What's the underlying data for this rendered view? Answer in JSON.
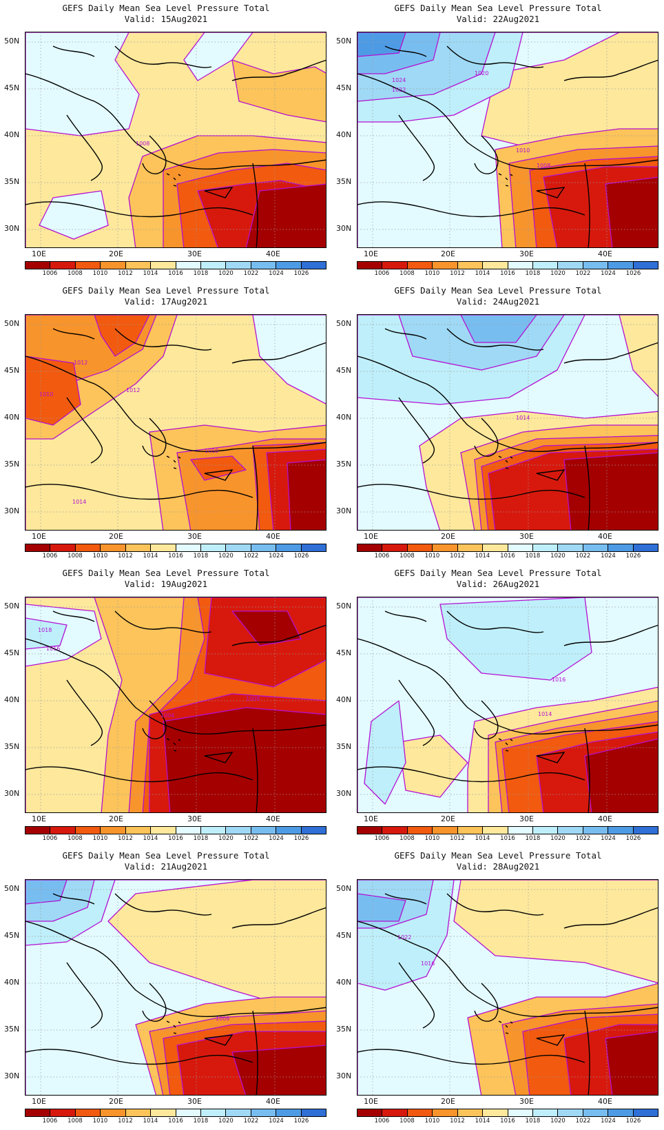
{
  "title": "GEFS Daily Mean Sea Level Pressure Total",
  "lat_labels": [
    "50N",
    "45N",
    "40N",
    "35N",
    "30N"
  ],
  "lon_labels": [
    "10E",
    "20E",
    "30E",
    "40E"
  ],
  "colorbar": {
    "labels": [
      "1006",
      "1008",
      "1010",
      "1012",
      "1014",
      "1016",
      "1018",
      "1020",
      "1022",
      "1024",
      "1026"
    ],
    "colors": [
      "#a50000",
      "#d7190d",
      "#f25a0f",
      "#f8942c",
      "#fcc45a",
      "#fde89c",
      "#e3fbff",
      "#bfeffa",
      "#9fd9f5",
      "#78bdf0",
      "#4e9be5",
      "#2f6fd6"
    ]
  },
  "contour_color": "#b40fd2",
  "panels": [
    {
      "valid": "Valid: 15Aug2021",
      "contour_labels": [
        "1008"
      ]
    },
    {
      "valid": "Valid: 22Aug2021",
      "contour_labels": [
        "1020",
        "1024",
        "1022",
        "1010",
        "1008"
      ]
    },
    {
      "valid": "Valid: 17Aug2021",
      "contour_labels": [
        "1012",
        "1010",
        "1012",
        "1010",
        "1014"
      ]
    },
    {
      "valid": "Valid: 24Aug2021",
      "contour_labels": [
        "1014"
      ]
    },
    {
      "valid": "Valid: 19Aug2021",
      "contour_labels": [
        "1018",
        "1016",
        "1008",
        "1004"
      ]
    },
    {
      "valid": "Valid: 26Aug2021",
      "contour_labels": [
        "1016",
        "1014"
      ]
    },
    {
      "valid": "Valid: 21Aug2021",
      "contour_labels": [
        "1008"
      ]
    },
    {
      "valid": "Valid: 28Aug2021",
      "contour_labels": [
        "1022",
        "1016"
      ]
    }
  ]
}
